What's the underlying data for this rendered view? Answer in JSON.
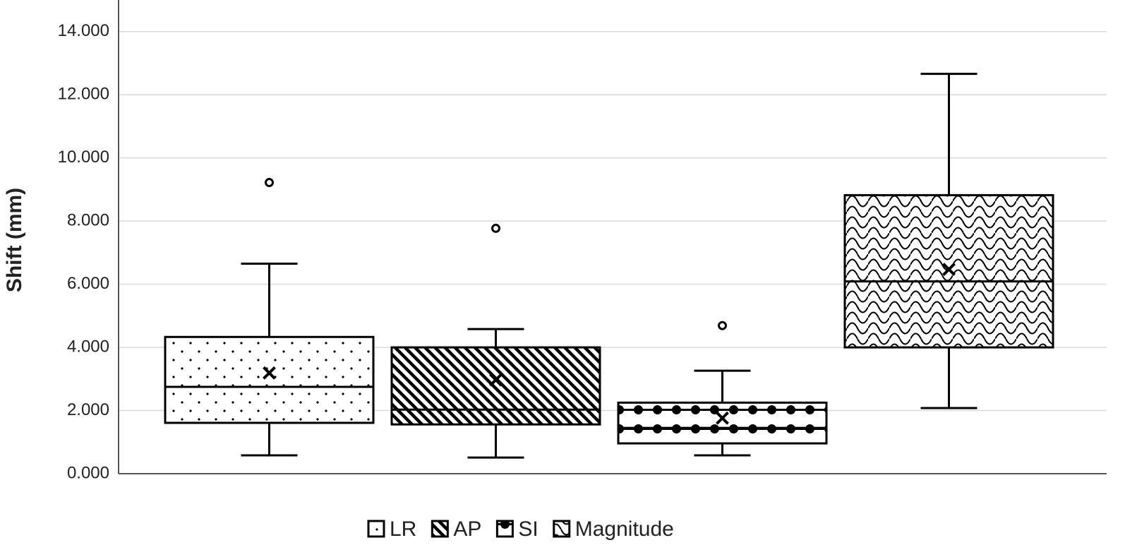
{
  "chart_data": {
    "type": "box",
    "y_label": "Shift (mm)",
    "ylim": [
      0,
      15
    ],
    "yticks": [
      {
        "value": 0,
        "label": "0.000"
      },
      {
        "value": 2,
        "label": "2.000"
      },
      {
        "value": 4,
        "label": "4.000"
      },
      {
        "value": 6,
        "label": "6.000"
      },
      {
        "value": 8,
        "label": "8.000"
      },
      {
        "value": 10,
        "label": "10.000"
      },
      {
        "value": 12,
        "label": "12.000"
      },
      {
        "value": 14,
        "label": "14.000"
      }
    ],
    "grid": true,
    "legend": "bottom",
    "series": [
      {
        "name": "LR",
        "color": "#000000",
        "min": 0.58,
        "q1": 1.61,
        "median": 2.75,
        "q3": 4.33,
        "max": 6.65,
        "mean": 3.19,
        "outliers": [
          9.22
        ]
      },
      {
        "name": "AP",
        "color": "#000000",
        "min": 0.51,
        "q1": 1.56,
        "median": 2.03,
        "q3": 4.0,
        "max": 4.58,
        "mean": 2.97,
        "outliers": [
          7.77
        ]
      },
      {
        "name": "SI",
        "color": "#000000",
        "min": 0.58,
        "q1": 0.96,
        "median": 1.45,
        "q3": 2.25,
        "max": 3.26,
        "mean": 1.76,
        "outliers": [
          4.69
        ]
      },
      {
        "name": "Magnitude",
        "color": "#000000",
        "min": 2.08,
        "q1": 4.0,
        "median": 6.09,
        "q3": 8.82,
        "max": 12.66,
        "mean": 6.47,
        "outliers": []
      }
    ]
  }
}
